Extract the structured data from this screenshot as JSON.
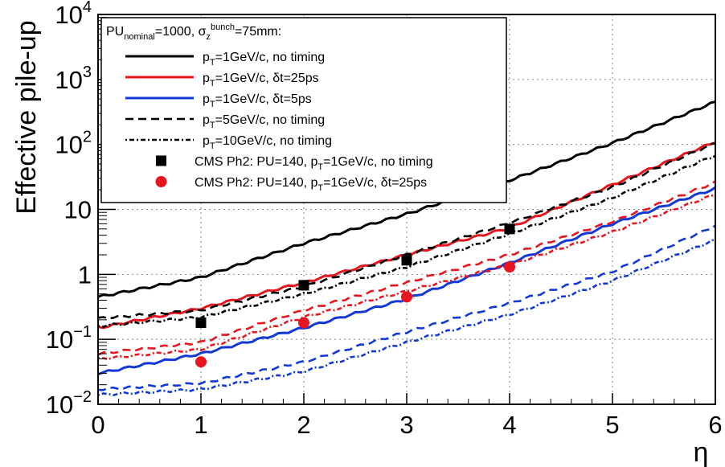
{
  "chart_data": {
    "type": "line",
    "ylabel": "Effective pile-up",
    "xlabel": "η",
    "xlim": [
      0,
      6
    ],
    "ylim": [
      0.01,
      10000
    ],
    "yscale": "log",
    "grid": true,
    "legend_position": "top-left",
    "legend_title": "PU_nominal=1000, σ_z^bunch=75mm:",
    "x_ticks": [
      "0",
      "1",
      "2",
      "3",
      "4",
      "5",
      "6"
    ],
    "y_ticks": [
      {
        "value": 0.01,
        "mant": "10",
        "sup": "−2"
      },
      {
        "value": 0.1,
        "mant": "10",
        "sup": "−1"
      },
      {
        "value": 1,
        "mant": "1",
        "sup": ""
      },
      {
        "value": 10,
        "mant": "10",
        "sup": ""
      },
      {
        "value": 100,
        "mant": "10",
        "sup": "2"
      },
      {
        "value": 1000,
        "mant": "10",
        "sup": "3"
      },
      {
        "value": 10000,
        "mant": "10",
        "sup": "4"
      }
    ],
    "series": [
      {
        "name": "p_T=1GeV/c, no timing",
        "color": "#000000",
        "style": "solid",
        "x": [
          0,
          1,
          2,
          3,
          4,
          5,
          6
        ],
        "y": [
          0.45,
          0.9,
          3.0,
          8.5,
          28,
          105,
          450
        ]
      },
      {
        "name": "p_T=1GeV/c, δt=25ps",
        "color": "#e8141e",
        "style": "solid",
        "x": [
          0,
          1,
          2,
          3,
          4,
          5,
          6
        ],
        "y": [
          0.15,
          0.3,
          0.75,
          2.0,
          5.2,
          24,
          110
        ]
      },
      {
        "name": "p_T=1GeV/c, δt=5ps",
        "color": "#1238d8",
        "style": "solid",
        "x": [
          0,
          1,
          2,
          3,
          4,
          5,
          6
        ],
        "y": [
          0.03,
          0.06,
          0.15,
          0.42,
          1.5,
          6,
          21
        ]
      },
      {
        "name": "p_T=5GeV/c, no timing",
        "color": "#000000",
        "style": "dashed",
        "x": [
          0,
          1,
          2,
          3,
          4,
          5,
          6
        ],
        "y": [
          0.21,
          0.28,
          0.65,
          2.0,
          6.2,
          22,
          105
        ]
      },
      {
        "name": "p_T=10GeV/c, no timing",
        "color": "#000000",
        "style": "dotted",
        "x": [
          0,
          1,
          2,
          3,
          4,
          5,
          6
        ],
        "y": [
          0.16,
          0.22,
          0.5,
          1.3,
          4.2,
          15,
          68
        ]
      },
      {
        "name": "",
        "color": "#e8141e",
        "style": "dashed",
        "x": [
          0,
          1,
          2,
          3,
          4,
          5,
          6
        ],
        "y": [
          0.06,
          0.09,
          0.28,
          0.75,
          2.0,
          6.5,
          26
        ]
      },
      {
        "name": "",
        "color": "#e8141e",
        "style": "dotted",
        "x": [
          0,
          1,
          2,
          3,
          4,
          5,
          6
        ],
        "y": [
          0.05,
          0.07,
          0.22,
          0.55,
          1.4,
          4.5,
          17
        ]
      },
      {
        "name": "",
        "color": "#1238d8",
        "style": "dashed",
        "x": [
          0,
          1,
          2,
          3,
          4,
          5,
          6
        ],
        "y": [
          0.017,
          0.021,
          0.045,
          0.13,
          0.36,
          1.1,
          5.6
        ]
      },
      {
        "name": "",
        "color": "#1238d8",
        "style": "dotted",
        "x": [
          0,
          1,
          2,
          3,
          4,
          5,
          6
        ],
        "y": [
          0.014,
          0.017,
          0.032,
          0.09,
          0.24,
          0.8,
          3.4
        ]
      }
    ],
    "markers": [
      {
        "name": "CMS Ph2: PU=140, p_T=1GeV/c, no timing",
        "shape": "square",
        "color": "#000000",
        "x": [
          1,
          2,
          3,
          4
        ],
        "y": [
          0.18,
          0.68,
          1.65,
          5.0
        ]
      },
      {
        "name": "CMS Ph2: PU=140, p_T=1GeV/c, δt=25ps",
        "shape": "circle",
        "color": "#e8141e",
        "x": [
          1,
          2,
          3,
          4
        ],
        "y": [
          0.045,
          0.18,
          0.45,
          1.3
        ]
      }
    ]
  }
}
